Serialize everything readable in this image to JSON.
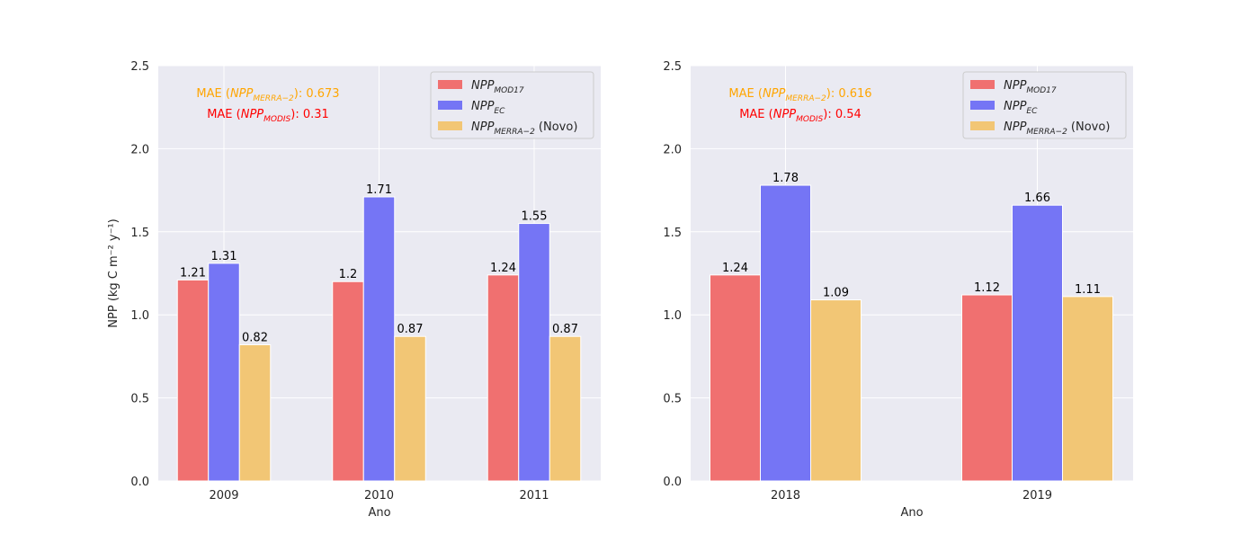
{
  "colors": {
    "mod17": "#f07070",
    "ec": "#7575f5",
    "merra": "#f2c675",
    "mae_merra": "#ffa500",
    "mae_modis": "#ff0000"
  },
  "chart_data": [
    {
      "type": "bar",
      "xlabel": "Ano",
      "ylabel": "NPP (kg C m⁻² y⁻¹)",
      "ylim": [
        0,
        2.5
      ],
      "yticks": [
        "0.0",
        "0.5",
        "1.0",
        "1.5",
        "2.0",
        "2.5"
      ],
      "grid": true,
      "legend_position": "top-right",
      "categories": [
        "2009",
        "2010",
        "2011"
      ],
      "series": [
        {
          "name": "NPP_MOD17",
          "values": [
            1.21,
            1.2,
            1.24
          ],
          "labels": [
            "1.21",
            "1.2",
            "1.24"
          ]
        },
        {
          "name": "NPP_EC",
          "values": [
            1.31,
            1.71,
            1.55
          ],
          "labels": [
            "1.31",
            "1.71",
            "1.55"
          ]
        },
        {
          "name": "NPP_MERRA-2 (Novo)",
          "values": [
            0.82,
            0.87,
            0.87
          ],
          "labels": [
            "0.82",
            "0.87",
            "0.87"
          ]
        }
      ],
      "annotations": {
        "mae_merra": {
          "prefix": "MAE (",
          "var": "NPP",
          "sub": "MERRA−2",
          "suffix": "): 0.673"
        },
        "mae_modis": {
          "prefix": "MAE (",
          "var": "NPP",
          "sub": "MODIS",
          "suffix": "): 0.31"
        }
      }
    },
    {
      "type": "bar",
      "xlabel": "Ano",
      "ylabel": "",
      "ylim": [
        0,
        2.5
      ],
      "yticks": [
        "0.0",
        "0.5",
        "1.0",
        "1.5",
        "2.0",
        "2.5"
      ],
      "grid": true,
      "legend_position": "top-right",
      "categories": [
        "2018",
        "2019"
      ],
      "series": [
        {
          "name": "NPP_MOD17",
          "values": [
            1.24,
            1.12
          ],
          "labels": [
            "1.24",
            "1.12"
          ]
        },
        {
          "name": "NPP_EC",
          "values": [
            1.78,
            1.66
          ],
          "labels": [
            "1.78",
            "1.66"
          ]
        },
        {
          "name": "NPP_MERRA-2 (Novo)",
          "values": [
            1.09,
            1.11
          ],
          "labels": [
            "1.09",
            "1.11"
          ]
        }
      ],
      "annotations": {
        "mae_merra": {
          "prefix": "MAE (",
          "var": "NPP",
          "sub": "MERRA−2",
          "suffix": "): 0.616"
        },
        "mae_modis": {
          "prefix": "MAE (",
          "var": "NPP",
          "sub": "MODIS",
          "suffix": "): 0.54"
        }
      }
    }
  ],
  "legend": [
    {
      "var": "NPP",
      "sub": "MOD17",
      "extra": ""
    },
    {
      "var": "NPP",
      "sub": "EC",
      "extra": ""
    },
    {
      "var": "NPP",
      "sub": "MERRA−2",
      "extra": " (Novo)"
    }
  ]
}
